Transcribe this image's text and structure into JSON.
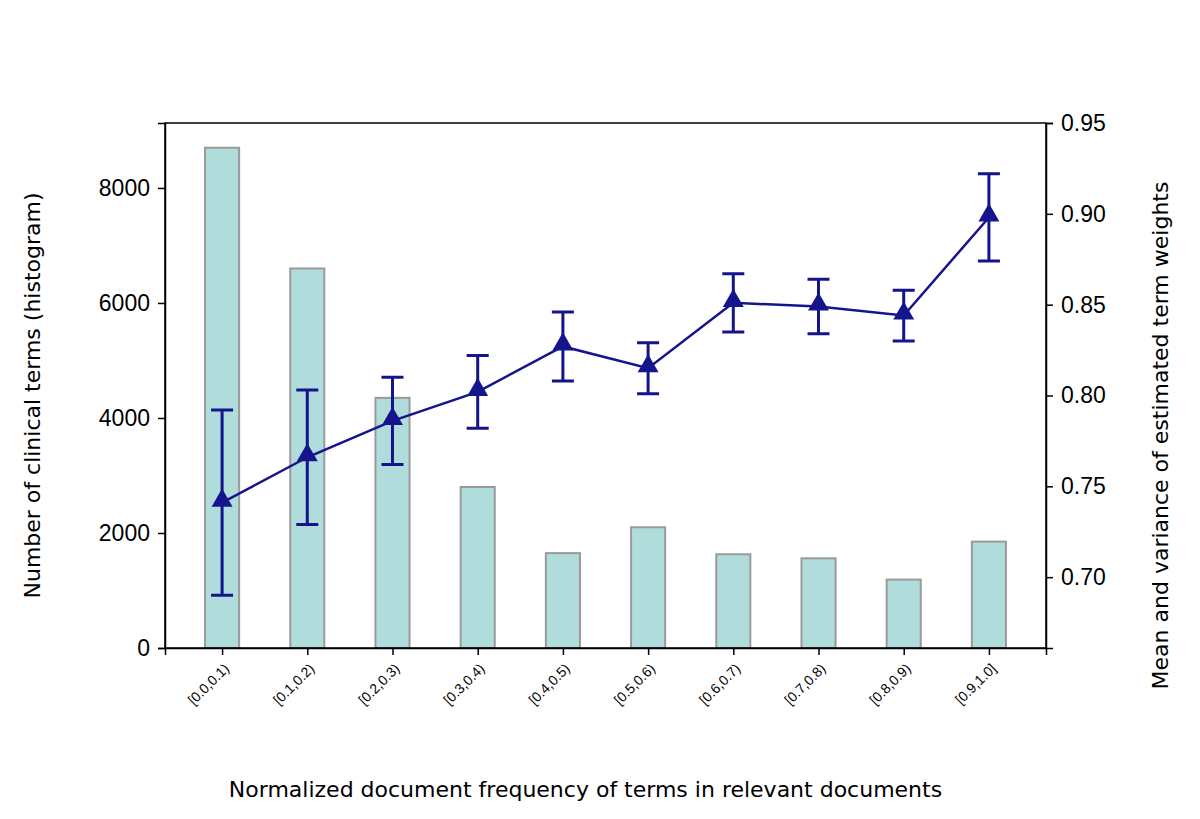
{
  "chart_data": {
    "type": "bar",
    "xlabel": "Normalized document frequency of terms in relevant documents",
    "ylabel": "Number of clinical terms (histogram)",
    "y2label": "Mean and variance of estimated term weights",
    "categories": [
      "[0.0,0.1)",
      "[0.1,0.2)",
      "[0.2,0.3)",
      "[0.3,0.4)",
      "[0.4,0.5)",
      "[0.5,0.6)",
      "[0.6,0.7)",
      "[0.7,0.8)",
      "[0.8,0.9)",
      "[0.9,1.0]"
    ],
    "ylim": [
      0,
      9130
    ],
    "yticks": [
      0,
      2000,
      4000,
      6000,
      8000
    ],
    "y2lim": [
      0.661,
      0.95
    ],
    "y2ticks": [
      {
        "value": 0.7,
        "label": "0.70"
      },
      0.75,
      {
        "value": 0.8,
        "label": "0.80"
      },
      0.85,
      {
        "value": 0.9,
        "label": "0.90"
      },
      0.95
    ],
    "grid": false,
    "series": [
      {
        "type": "bar",
        "color": "#b0dcdc",
        "values": [
          8700,
          6600,
          4350,
          2800,
          1650,
          2100,
          1630,
          1560,
          1190,
          1850
        ]
      },
      {
        "type": "line",
        "axis": "y2",
        "color": "#14148c",
        "marker": "triangle",
        "values": [
          0.741,
          0.766,
          0.786,
          0.802,
          0.827,
          0.815,
          0.851,
          0.849,
          0.844,
          0.898
        ],
        "errors": [
          0.051,
          0.037,
          0.024,
          0.02,
          0.019,
          0.014,
          0.016,
          0.015,
          0.014,
          0.024
        ]
      }
    ]
  }
}
